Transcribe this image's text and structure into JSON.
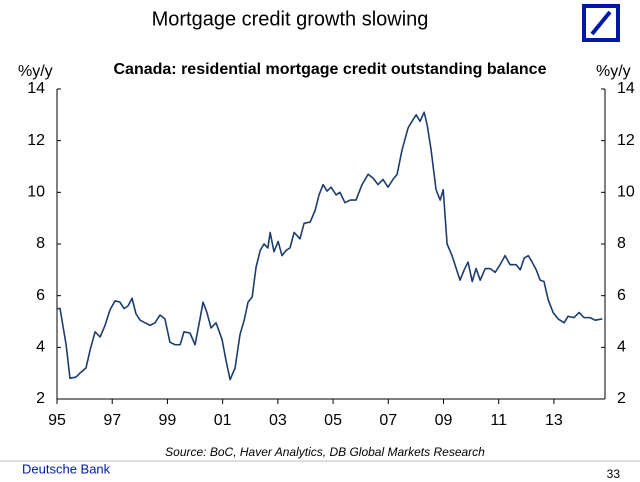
{
  "slide_title": "Mortgage credit growth slowing",
  "footer": {
    "company": "Deutsche Bank",
    "page": "33"
  },
  "chart_data": {
    "type": "line",
    "title": "Canada: residential mortgage credit outstanding balance",
    "ylabel": "%y/y",
    "y2label": "%y/y",
    "source": "Source: BoC, Haver Analytics, DB Global Markets Research",
    "color": "#1c3d6e",
    "xlim": [
      1995,
      2014.85
    ],
    "xticks": [
      {
        "value": 1995,
        "label": "95"
      },
      {
        "value": 1997,
        "label": "97"
      },
      {
        "value": 1999,
        "label": "99"
      },
      {
        "value": 2001,
        "label": "01"
      },
      {
        "value": 2003,
        "label": "03"
      },
      {
        "value": 2005,
        "label": "05"
      },
      {
        "value": 2007,
        "label": "07"
      },
      {
        "value": 2009,
        "label": "09"
      },
      {
        "value": 2011,
        "label": "11"
      },
      {
        "value": 2013,
        "label": "13"
      }
    ],
    "ylim": [
      2,
      14
    ],
    "yticks": [
      2,
      4,
      6,
      8,
      10,
      12,
      14
    ],
    "y2lim": [
      2,
      14
    ],
    "y2ticks": [
      2,
      4,
      6,
      8,
      10,
      12,
      14
    ],
    "x": [
      1995.0,
      1995.11,
      1995.33,
      1995.47,
      1995.69,
      1995.83,
      1996.05,
      1996.2,
      1996.38,
      1996.56,
      1996.74,
      1996.92,
      1997.1,
      1997.28,
      1997.43,
      1997.57,
      1997.72,
      1997.86,
      1998.01,
      1998.19,
      1998.37,
      1998.55,
      1998.73,
      1998.91,
      1999.09,
      1999.28,
      1999.46,
      1999.6,
      1999.82,
      2000.0,
      2000.18,
      2000.29,
      2000.43,
      2000.58,
      2000.76,
      2000.98,
      2001.12,
      2001.27,
      2001.45,
      2001.63,
      2001.78,
      2001.92,
      2002.07,
      2002.21,
      2002.36,
      2002.5,
      2002.64,
      2002.72,
      2002.86,
      2003.01,
      2003.15,
      2003.3,
      2003.44,
      2003.59,
      2003.8,
      2003.95,
      2004.17,
      2004.35,
      2004.49,
      2004.64,
      2004.78,
      2004.93,
      2005.11,
      2005.25,
      2005.43,
      2005.62,
      2005.83,
      2006.05,
      2006.27,
      2006.45,
      2006.63,
      2006.81,
      2006.99,
      2007.17,
      2007.32,
      2007.5,
      2007.72,
      2007.86,
      2008.01,
      2008.15,
      2008.3,
      2008.41,
      2008.55,
      2008.73,
      2008.88,
      2008.99,
      2009.13,
      2009.31,
      2009.46,
      2009.6,
      2009.75,
      2009.89,
      2010.04,
      2010.18,
      2010.33,
      2010.51,
      2010.69,
      2010.87,
      2011.05,
      2011.23,
      2011.41,
      2011.63,
      2011.78,
      2011.92,
      2012.07,
      2012.21,
      2012.36,
      2012.5,
      2012.64,
      2012.79,
      2012.97,
      2013.15,
      2013.37,
      2013.51,
      2013.73,
      2013.91,
      2014.09,
      2014.31,
      2014.49,
      2014.75
    ],
    "values": [
      5.5,
      5.5,
      4.1,
      2.8,
      2.85,
      3.0,
      3.2,
      3.9,
      4.6,
      4.4,
      4.85,
      5.45,
      5.8,
      5.75,
      5.5,
      5.6,
      5.9,
      5.3,
      5.05,
      4.95,
      4.85,
      4.95,
      5.25,
      5.1,
      4.2,
      4.1,
      4.1,
      4.6,
      4.55,
      4.1,
      5.1,
      5.75,
      5.35,
      4.75,
      4.95,
      4.3,
      3.5,
      2.75,
      3.2,
      4.5,
      5.05,
      5.75,
      5.95,
      7.1,
      7.75,
      8.0,
      7.85,
      8.45,
      7.7,
      8.1,
      7.55,
      7.75,
      7.85,
      8.45,
      8.2,
      8.8,
      8.85,
      9.3,
      9.9,
      10.3,
      10.05,
      10.2,
      9.9,
      10.0,
      9.6,
      9.7,
      9.7,
      10.3,
      10.7,
      10.55,
      10.3,
      10.5,
      10.2,
      10.5,
      10.7,
      11.65,
      12.5,
      12.75,
      13.0,
      12.75,
      13.1,
      12.6,
      11.65,
      10.1,
      9.7,
      10.1,
      8.0,
      7.55,
      7.05,
      6.6,
      7.0,
      7.3,
      6.55,
      7.05,
      6.6,
      7.05,
      7.05,
      6.9,
      7.2,
      7.55,
      7.2,
      7.2,
      7.0,
      7.45,
      7.55,
      7.3,
      7.0,
      6.6,
      6.55,
      5.85,
      5.35,
      5.1,
      4.95,
      5.2,
      5.15,
      5.35,
      5.15,
      5.15,
      5.05,
      5.1
    ]
  }
}
